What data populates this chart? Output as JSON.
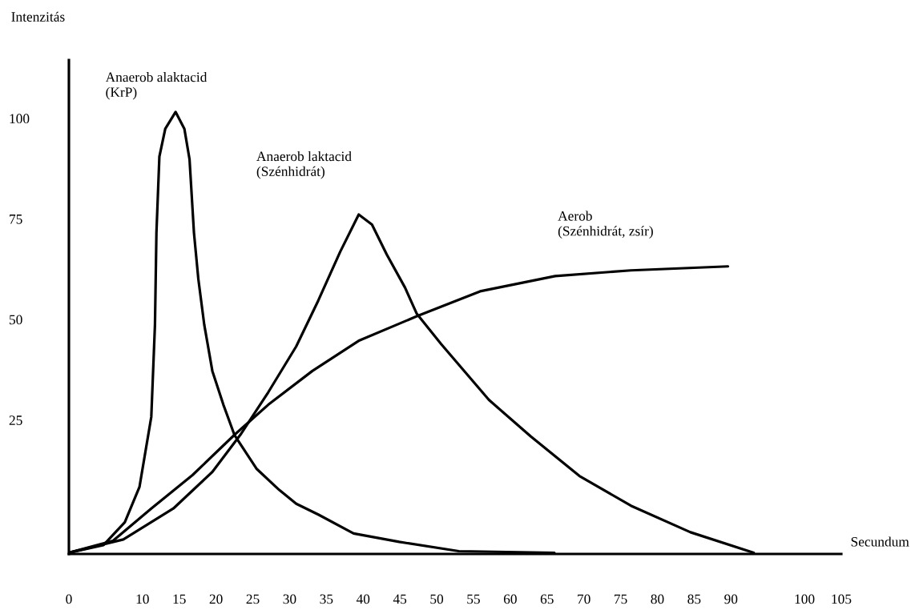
{
  "chart_data": {
    "type": "line",
    "xlabel": "Secundum",
    "ylabel": "Intenzitás",
    "xlim": [
      0,
      105
    ],
    "ylim": [
      -8.3,
      114.5
    ],
    "xticks": [
      0,
      10,
      15,
      20,
      25,
      30,
      35,
      40,
      45,
      50,
      55,
      60,
      65,
      70,
      75,
      80,
      85,
      90,
      100,
      105
    ],
    "yticks": [
      25,
      50,
      75,
      100
    ],
    "grid": false,
    "legend": false,
    "line_style": "solid",
    "marker": "none",
    "series": [
      {
        "name": "Anaerob alaktacid\n(KrP)",
        "color": "#000000",
        "x": [
          0,
          4.7,
          7.6,
          9.6,
          11.2,
          11.7,
          11.9,
          12.3,
          13.1,
          14.5,
          15.7,
          16.4,
          17.0,
          17.6,
          18.4,
          19.5,
          21.0,
          22.5,
          25.5,
          28.6,
          30.9,
          33.9,
          38.7,
          44.9,
          53,
          66
        ],
        "values": [
          -8,
          -6.1,
          -0.4,
          8.4,
          25.8,
          48.7,
          71.6,
          90.5,
          97.4,
          101.6,
          97.4,
          89.8,
          71.6,
          60,
          48.7,
          37.2,
          28.8,
          21.3,
          12.9,
          7.6,
          4.2,
          1.5,
          -3.2,
          -5.3,
          -7.6,
          -8
        ]
      },
      {
        "name": "Anaerob laktacid\n(Szénhidrát)",
        "color": "#000000",
        "x": [
          0,
          7.4,
          14.2,
          19.5,
          23.3,
          27.1,
          30.9,
          33.9,
          36.9,
          39.4,
          41.2,
          43.2,
          45.7,
          47.3,
          50.6,
          57.1,
          62.8,
          69.4,
          76.4,
          84.5,
          93.1
        ],
        "values": [
          -8,
          -4.7,
          3,
          12.1,
          21.3,
          31.9,
          43.3,
          54.7,
          66.9,
          76.1,
          73.6,
          66.2,
          57.9,
          51.4,
          43.9,
          30,
          20.9,
          11.1,
          3.7,
          -2.9,
          -8
        ]
      },
      {
        "name": "Aerob\n(Szénhidrát, zsír)",
        "color": "#000000",
        "x": [
          0,
          6,
          11.2,
          16.8,
          22.5,
          27.1,
          33.1,
          39.5,
          47.3,
          55.9,
          66.1,
          76.4,
          89.6
        ],
        "values": [
          -8,
          -5,
          3,
          11.3,
          21.3,
          28.8,
          37.2,
          44.8,
          50.8,
          57,
          60.8,
          62.2,
          63.2
        ]
      }
    ]
  }
}
